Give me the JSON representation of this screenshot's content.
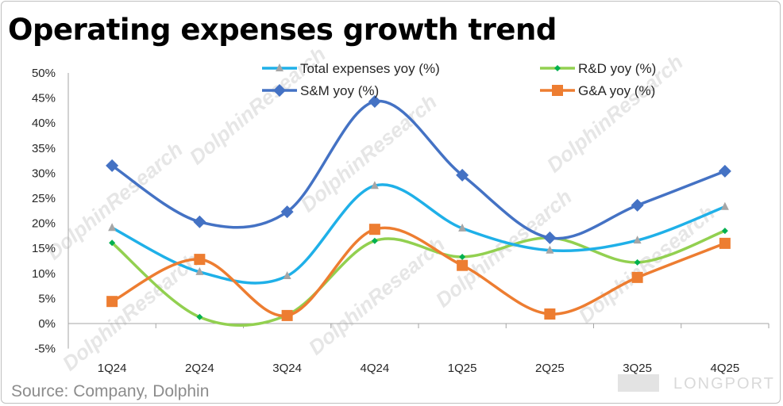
{
  "title": "Operating expenses growth trend",
  "source": "Source: Company, Dolphin",
  "watermark": "DolphinResearch",
  "logo_text": "LONGPORT",
  "chart_data": {
    "type": "line",
    "smooth": true,
    "categories": [
      "1Q24",
      "2Q24",
      "3Q24",
      "4Q24",
      "1Q25",
      "2Q25",
      "3Q25",
      "4Q25"
    ],
    "ylim": [
      -5,
      50
    ],
    "yticks": [
      -5,
      0,
      5,
      10,
      15,
      20,
      25,
      30,
      35,
      40,
      45,
      50
    ],
    "ytick_labels": [
      "-5%",
      "0%",
      "5%",
      "10%",
      "15%",
      "20%",
      "25%",
      "30%",
      "35%",
      "40%",
      "45%",
      "50%"
    ],
    "grid": false,
    "legend_placement": "top",
    "series": [
      {
        "name": "Total expenses yoy  (%)",
        "color": "#1fb0e8",
        "marker": "triangle",
        "marker_color": "#a6a6a6",
        "values": [
          19.1,
          10.3,
          9.5,
          27.5,
          19.0,
          14.6,
          16.6,
          23.3
        ]
      },
      {
        "name": "R&D yoy  (%)",
        "color": "#92d050",
        "marker": "diamond-small",
        "marker_color": "#00b050",
        "values": [
          16.1,
          1.3,
          1.7,
          16.5,
          13.3,
          17.1,
          12.2,
          18.5
        ]
      },
      {
        "name": "S&M yoy  (%)",
        "color": "#4472c4",
        "marker": "diamond",
        "marker_color": "#4472c4",
        "values": [
          31.5,
          20.3,
          22.3,
          44.3,
          29.6,
          17.1,
          23.6,
          30.4
        ]
      },
      {
        "name": "G&A yoy  (%)",
        "color": "#ed7d31",
        "marker": "square",
        "marker_color": "#ed7d31",
        "values": [
          4.4,
          12.8,
          1.6,
          18.8,
          11.6,
          1.9,
          9.2,
          16.0
        ]
      }
    ]
  }
}
